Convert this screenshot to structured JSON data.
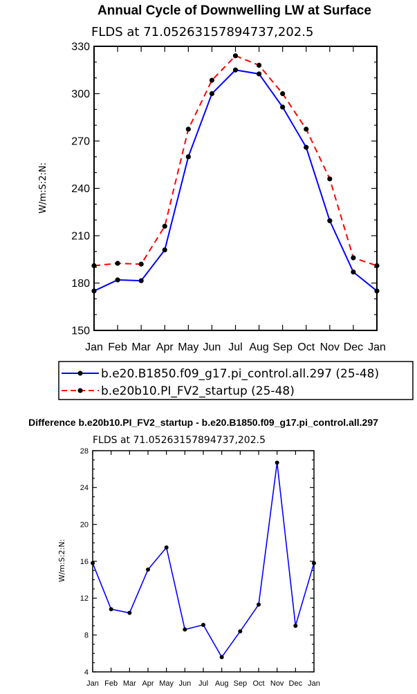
{
  "chart_data": [
    {
      "type": "line",
      "title": "Annual Cycle of Downwelling LW at Surface",
      "subtitle": "FLDS at 71.05263157894737,202.5",
      "ylabel": "W/m:S:2:N:",
      "ylim": [
        150,
        330
      ],
      "yticks": [
        "150",
        "180",
        "210",
        "240",
        "270",
        "300",
        "330"
      ],
      "categories": [
        "Jan",
        "Feb",
        "Mar",
        "Apr",
        "May",
        "Jun",
        "Jul",
        "Aug",
        "Sep",
        "Oct",
        "Nov",
        "Dec",
        "Jan"
      ],
      "series": [
        {
          "name": "b.e20.B1850.f09_g17.pi_control.all.297 (25-48)",
          "color": "#0000ff",
          "style": "solid",
          "values": [
            175,
            182,
            181.5,
            201,
            260,
            300,
            315,
            312.5,
            291.5,
            266,
            219.5,
            187,
            175
          ]
        },
        {
          "name": "b.e20b10.PI_FV2_startup (25-48)",
          "color": "#ff0000",
          "style": "dashed",
          "values": [
            191,
            192.5,
            192,
            216,
            277.5,
            308.5,
            324,
            318,
            300,
            277.5,
            246,
            196,
            191
          ]
        }
      ],
      "legend": "bottom"
    },
    {
      "type": "line",
      "title": "Difference b.e20b10.PI_FV2_startup - b.e20.B1850.f09_g17.pi_control.all.297",
      "subtitle": "FLDS at 71.05263157894737,202.5",
      "ylabel": "W/m:S:2:N:",
      "ylim": [
        4,
        28
      ],
      "yticks": [
        "4",
        "8",
        "12",
        "16",
        "20",
        "24",
        "28"
      ],
      "categories": [
        "Jan",
        "Feb",
        "Mar",
        "Apr",
        "May",
        "Jun",
        "Jul",
        "Aug",
        "Sep",
        "Oct",
        "Nov",
        "Dec",
        "Jan"
      ],
      "series": [
        {
          "color": "#0000ff",
          "style": "solid",
          "values": [
            15.8,
            10.8,
            10.4,
            15.1,
            17.5,
            8.6,
            9.1,
            5.6,
            8.4,
            11.3,
            26.7,
            9.0,
            15.8
          ]
        }
      ]
    }
  ]
}
